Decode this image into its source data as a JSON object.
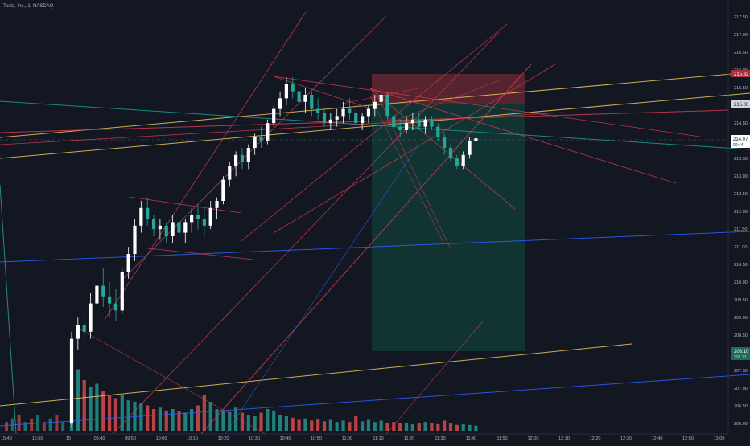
{
  "header": {
    "symbol_title": "Tesla, Inc., 1, NASDAQ"
  },
  "colors": {
    "background": "#131722",
    "up": "#ffffff",
    "down": "#26a69a",
    "bull_volume": "#26a69a",
    "bear_volume": "#ef5350",
    "trend_red": "#d43b52",
    "trend_yellow": "#f0c75e",
    "trend_blue": "#2962ff",
    "trend_teal": "#1a9e96",
    "stop_zone": "#7a2b37",
    "target_zone": "#123f3a"
  },
  "price_labels": {
    "current_price": "214.07",
    "countdown": "00:44",
    "stop_price": "215.82",
    "entry_price": "215.00",
    "target_price": "208.10",
    "target_sub": "208.10"
  },
  "chart_data": {
    "type": "candlestick",
    "title": "Tesla, Inc., 1, NASDAQ",
    "xlabel": "",
    "ylabel": "",
    "ylim": [
      205.8,
      217.8
    ],
    "y_ticks": [
      "217.50",
      "217.00",
      "216.50",
      "216.00",
      "215.50",
      "215.00",
      "214.50",
      "214.00",
      "213.50",
      "213.00",
      "212.50",
      "212.00",
      "211.50",
      "211.00",
      "210.50",
      "210.00",
      "209.50",
      "209.00",
      "208.50",
      "208.00",
      "207.50",
      "207.00",
      "206.50",
      "206.00"
    ],
    "x_ticks": [
      "15:40",
      "15:50",
      "15",
      "09:40",
      "09:50",
      "10:00",
      "10:10",
      "10:20",
      "10:30",
      "10:40",
      "10:50",
      "11:00",
      "11:10",
      "11:20",
      "11:30",
      "11:40",
      "11:50",
      "12:00",
      "12:10",
      "12:20",
      "12:30",
      "12:40",
      "12:50",
      "13:00"
    ],
    "grid": false,
    "series": [
      {
        "name": "TSLA",
        "candles": [
          [
            206.0,
            208.6,
            205.9,
            208.4
          ],
          [
            208.4,
            209.0,
            208.1,
            208.8
          ],
          [
            208.8,
            209.2,
            208.3,
            208.6
          ],
          [
            208.6,
            209.7,
            208.4,
            209.4
          ],
          [
            209.4,
            210.2,
            209.1,
            209.9
          ],
          [
            209.9,
            210.4,
            209.3,
            209.6
          ],
          [
            209.6,
            210.0,
            209.0,
            209.4
          ],
          [
            209.4,
            209.8,
            208.9,
            209.2
          ],
          [
            209.2,
            210.4,
            209.1,
            210.3
          ],
          [
            210.3,
            211.0,
            210.1,
            210.8
          ],
          [
            210.8,
            211.8,
            210.6,
            211.6
          ],
          [
            211.6,
            212.3,
            211.4,
            212.1
          ],
          [
            212.1,
            212.4,
            211.6,
            211.8
          ],
          [
            211.8,
            211.9,
            211.3,
            211.5
          ],
          [
            211.5,
            211.8,
            211.2,
            211.6
          ],
          [
            211.6,
            211.7,
            211.1,
            211.3
          ],
          [
            211.3,
            211.9,
            211.1,
            211.7
          ],
          [
            211.7,
            212.0,
            211.2,
            211.4
          ],
          [
            211.4,
            211.8,
            211.1,
            211.7
          ],
          [
            211.7,
            212.1,
            211.4,
            211.9
          ],
          [
            211.9,
            212.2,
            211.5,
            211.8
          ],
          [
            211.8,
            212.1,
            211.3,
            211.6
          ],
          [
            211.6,
            212.3,
            211.5,
            212.1
          ],
          [
            212.1,
            212.4,
            211.8,
            212.3
          ],
          [
            212.3,
            213.0,
            212.2,
            212.9
          ],
          [
            212.9,
            213.4,
            212.7,
            213.3
          ],
          [
            213.3,
            213.7,
            213.0,
            213.6
          ],
          [
            213.6,
            213.8,
            213.2,
            213.4
          ],
          [
            213.4,
            213.9,
            213.2,
            213.8
          ],
          [
            213.8,
            214.2,
            213.6,
            214.1
          ],
          [
            214.1,
            214.4,
            213.8,
            214.0
          ],
          [
            214.0,
            214.6,
            213.9,
            214.5
          ],
          [
            214.5,
            215.0,
            214.4,
            214.9
          ],
          [
            214.9,
            215.4,
            214.7,
            215.2
          ],
          [
            215.2,
            215.8,
            215.0,
            215.6
          ],
          [
            215.6,
            215.8,
            215.2,
            215.4
          ],
          [
            215.4,
            215.6,
            214.9,
            215.1
          ],
          [
            215.1,
            215.5,
            214.8,
            215.3
          ],
          [
            215.3,
            215.4,
            214.7,
            214.9
          ],
          [
            214.9,
            215.2,
            214.6,
            214.8
          ],
          [
            214.8,
            214.9,
            214.4,
            214.5
          ],
          [
            214.5,
            214.8,
            214.3,
            214.6
          ],
          [
            214.6,
            214.9,
            214.4,
            214.7
          ],
          [
            214.7,
            215.1,
            214.5,
            214.9
          ],
          [
            214.9,
            215.2,
            214.6,
            214.8
          ],
          [
            214.8,
            215.0,
            214.4,
            214.5
          ],
          [
            214.5,
            214.8,
            214.3,
            214.7
          ],
          [
            214.7,
            215.0,
            214.5,
            214.9
          ],
          [
            214.9,
            215.3,
            214.7,
            215.1
          ],
          [
            215.1,
            215.5,
            214.9,
            215.3
          ],
          [
            215.3,
            215.4,
            214.6,
            214.7
          ],
          [
            214.7,
            214.9,
            214.3,
            214.4
          ],
          [
            214.4,
            214.6,
            214.1,
            214.3
          ],
          [
            214.3,
            214.7,
            214.2,
            214.5
          ],
          [
            214.5,
            214.8,
            214.3,
            214.6
          ],
          [
            214.6,
            214.8,
            214.3,
            214.4
          ],
          [
            214.4,
            214.7,
            214.2,
            214.6
          ],
          [
            214.6,
            214.7,
            214.3,
            214.4
          ],
          [
            214.4,
            214.5,
            214.0,
            214.1
          ],
          [
            214.1,
            214.2,
            213.6,
            213.8
          ],
          [
            213.8,
            213.9,
            213.4,
            213.5
          ],
          [
            213.5,
            213.6,
            213.2,
            213.3
          ],
          [
            213.3,
            213.7,
            213.2,
            213.6
          ],
          [
            213.6,
            214.1,
            213.5,
            214.0
          ],
          [
            214.0,
            214.2,
            213.8,
            214.07
          ]
        ],
        "volumes": [
          1.0,
          0.85,
          0.7,
          0.6,
          0.65,
          0.55,
          0.5,
          0.45,
          0.5,
          0.42,
          0.4,
          0.38,
          0.35,
          0.3,
          0.32,
          0.28,
          0.3,
          0.27,
          0.25,
          0.3,
          0.35,
          0.5,
          0.4,
          0.3,
          0.28,
          0.26,
          0.32,
          0.25,
          0.22,
          0.2,
          0.25,
          0.3,
          0.28,
          0.22,
          0.2,
          0.18,
          0.15,
          0.17,
          0.14,
          0.16,
          0.13,
          0.15,
          0.12,
          0.14,
          0.12,
          0.2,
          0.13,
          0.15,
          0.12,
          0.14,
          0.11,
          0.12,
          0.1,
          0.11,
          0.09,
          0.1,
          0.12,
          0.1,
          0.09,
          0.14,
          0.1,
          0.08,
          0.09,
          0.08,
          0.07
        ]
      }
    ]
  }
}
